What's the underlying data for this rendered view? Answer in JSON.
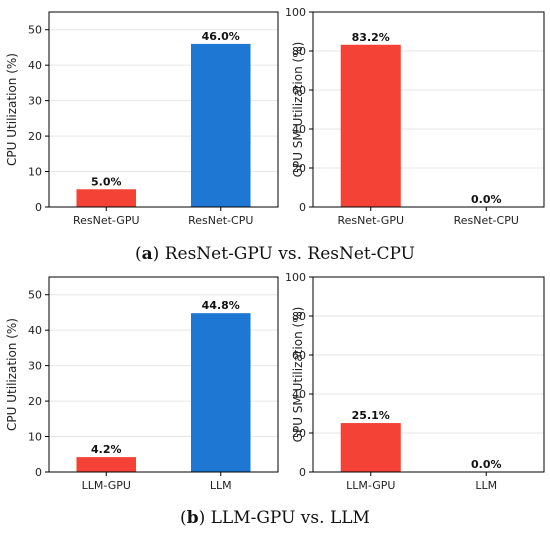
{
  "captions": [
    {
      "letter": "a",
      "open": "(",
      "close": ")",
      "text": " ResNet-GPU vs. ResNet-CPU"
    },
    {
      "letter": "b",
      "open": "(",
      "close": ")",
      "text": " LLM-GPU vs. LLM"
    }
  ],
  "colors": {
    "gpu_bar": "#f44336",
    "cpu_bar": "#1f77d4",
    "grid": "#e6e6e6",
    "axis": "#000000"
  },
  "chart_data": [
    {
      "type": "bar",
      "ylabel": "CPU Utilization (%)",
      "categories": [
        "ResNet-GPU",
        "ResNet-CPU"
      ],
      "values": [
        5.0,
        46.0
      ],
      "value_labels": [
        "5.0%",
        "46.0%"
      ],
      "ylim": [
        0,
        55
      ],
      "yticks": [
        0,
        10,
        20,
        30,
        40,
        50
      ],
      "grid": true
    },
    {
      "type": "bar",
      "ylabel": "GPU SM Utilization (%)",
      "categories": [
        "ResNet-GPU",
        "ResNet-CPU"
      ],
      "values": [
        83.2,
        0.0
      ],
      "value_labels": [
        "83.2%",
        "0.0%"
      ],
      "ylim": [
        0,
        100
      ],
      "yticks": [
        0,
        20,
        40,
        60,
        80,
        100
      ],
      "grid": true
    },
    {
      "type": "bar",
      "ylabel": "CPU Utilization (%)",
      "categories": [
        "LLM-GPU",
        "LLM"
      ],
      "values": [
        4.2,
        44.8
      ],
      "value_labels": [
        "4.2%",
        "44.8%"
      ],
      "ylim": [
        0,
        55
      ],
      "yticks": [
        0,
        10,
        20,
        30,
        40,
        50
      ],
      "grid": true
    },
    {
      "type": "bar",
      "ylabel": "GPU SM Utilization (%)",
      "categories": [
        "LLM-GPU",
        "LLM"
      ],
      "values": [
        25.1,
        0.0
      ],
      "value_labels": [
        "25.1%",
        "0.0%"
      ],
      "ylim": [
        0,
        100
      ],
      "yticks": [
        0,
        20,
        40,
        60,
        80,
        100
      ],
      "grid": true
    }
  ]
}
